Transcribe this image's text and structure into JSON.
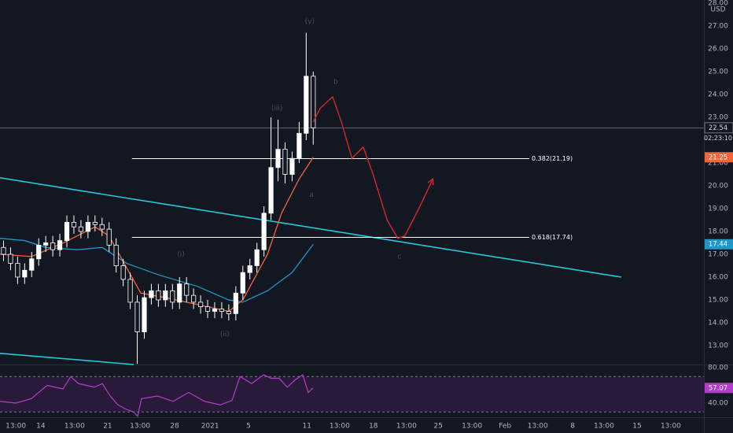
{
  "chart_data": {
    "type": "candlestick",
    "currency": "USD",
    "xlim": [
      0,
      200
    ],
    "ylim": [
      12.17,
      28.14
    ],
    "xticks": [
      {
        "value": 4.5,
        "label": "13:00"
      },
      {
        "value": 11.6,
        "label": "14"
      },
      {
        "value": 21.2,
        "label": "13:00"
      },
      {
        "value": 30.6,
        "label": "21"
      },
      {
        "value": 39.8,
        "label": "13:00"
      },
      {
        "value": 49.6,
        "label": "28"
      },
      {
        "value": 59.7,
        "label": "2021"
      },
      {
        "value": 70.6,
        "label": "5"
      },
      {
        "value": 87.2,
        "label": "11"
      },
      {
        "value": 96.5,
        "label": "13:00"
      },
      {
        "value": 106.1,
        "label": "18"
      },
      {
        "value": 115.5,
        "label": "13:00"
      },
      {
        "value": 124.5,
        "label": "25"
      },
      {
        "value": 134.1,
        "label": "13:00"
      },
      {
        "value": 143.5,
        "label": "Feb"
      },
      {
        "value": 152.8,
        "label": "13:00"
      },
      {
        "value": 162.7,
        "label": "8"
      },
      {
        "value": 171.6,
        "label": "13:00"
      },
      {
        "value": 181,
        "label": "15"
      },
      {
        "value": 190.6,
        "label": "13:00"
      }
    ],
    "yticks": [
      {
        "value": 13,
        "label": "13.00"
      },
      {
        "value": 14,
        "label": "14.00"
      },
      {
        "value": 15,
        "label": "15.00"
      },
      {
        "value": 16,
        "label": "16.00"
      },
      {
        "value": 17,
        "label": "17.00"
      },
      {
        "value": 18,
        "label": "18.00"
      },
      {
        "value": 19,
        "label": "19.00"
      },
      {
        "value": 20,
        "label": "20.00"
      },
      {
        "value": 21,
        "label": "21.00"
      },
      {
        "value": 23,
        "label": "23.00"
      },
      {
        "value": 24,
        "label": "24.00"
      },
      {
        "value": 25,
        "label": "25.00"
      },
      {
        "value": 26,
        "label": "26.00"
      },
      {
        "value": 27,
        "label": "27.00"
      },
      {
        "value": 28,
        "label": "28.00"
      }
    ],
    "candle_color": "#ffffff",
    "x": [
      1,
      3,
      5,
      7,
      9,
      11,
      13,
      15,
      17,
      19,
      21,
      23,
      25,
      27,
      29,
      31,
      33,
      35,
      37,
      39,
      41,
      43,
      45,
      47,
      49,
      51,
      53,
      55,
      57,
      59,
      61,
      63,
      65,
      67,
      69,
      71,
      73,
      75,
      77,
      79,
      81,
      83,
      85,
      87,
      89
    ],
    "open": [
      17.3,
      17.0,
      16.6,
      16.0,
      16.3,
      16.8,
      17.4,
      17.5,
      17.2,
      17.6,
      18.4,
      18.2,
      18.0,
      18.4,
      18.3,
      18.1,
      17.4,
      16.5,
      15.9,
      14.9,
      13.6,
      15.1,
      15.4,
      15.0,
      15.4,
      14.9,
      15.7,
      15.2,
      14.9,
      14.7,
      14.5,
      14.6,
      14.5,
      14.4,
      15.3,
      16.2,
      16.5,
      17.2,
      18.8,
      20.8,
      21.6,
      20.5,
      21.2,
      22.3,
      24.8
    ],
    "high": [
      17.6,
      17.3,
      16.9,
      16.6,
      17.1,
      17.7,
      17.8,
      17.8,
      17.9,
      18.7,
      18.7,
      18.5,
      18.7,
      18.7,
      18.6,
      18.4,
      17.7,
      16.8,
      16.2,
      15.2,
      15.4,
      15.7,
      15.7,
      15.7,
      15.7,
      16.0,
      16.0,
      15.5,
      15.2,
      15.0,
      14.9,
      14.9,
      14.8,
      15.6,
      16.5,
      16.8,
      17.5,
      19.1,
      23.0,
      22.9,
      21.9,
      21.5,
      22.8,
      26.7,
      25.0
    ],
    "low": [
      16.7,
      16.3,
      15.7,
      15.7,
      16.0,
      16.5,
      17.1,
      16.9,
      16.9,
      17.3,
      17.9,
      17.7,
      17.7,
      18.0,
      17.8,
      17.1,
      16.2,
      15.6,
      14.6,
      12.2,
      13.3,
      14.8,
      14.7,
      14.7,
      14.6,
      14.6,
      14.9,
      14.6,
      14.4,
      14.2,
      14.2,
      14.2,
      14.1,
      14.1,
      15.0,
      15.9,
      16.2,
      16.9,
      18.5,
      20.2,
      20.1,
      20.2,
      21.0,
      22.0,
      21.8
    ],
    "close": [
      17.0,
      16.6,
      16.0,
      16.3,
      16.8,
      17.4,
      17.5,
      17.2,
      17.6,
      18.4,
      18.2,
      18.0,
      18.4,
      18.3,
      18.1,
      17.4,
      16.5,
      15.9,
      14.9,
      13.6,
      15.1,
      15.4,
      15.0,
      15.4,
      14.9,
      15.7,
      15.2,
      14.9,
      14.7,
      14.5,
      14.6,
      14.5,
      14.4,
      15.3,
      16.2,
      16.5,
      17.2,
      18.8,
      20.8,
      21.6,
      20.5,
      21.2,
      22.3,
      24.8,
      22.54
    ],
    "last_price": 22.54,
    "countdown": "02:23:10",
    "series": [
      {
        "color": "#2196c8",
        "x": [
          0,
          7,
          13,
          22,
          29,
          36,
          45,
          56,
          65,
          69,
          76,
          83,
          89
        ],
        "values": [
          17.7,
          17.6,
          17.3,
          17.2,
          17.3,
          16.6,
          16.1,
          15.6,
          15.0,
          14.9,
          15.4,
          16.2,
          17.44
        ],
        "last": 17.44
      },
      {
        "color": "#f0653a",
        "x": [
          0,
          9,
          18,
          27,
          31,
          36,
          40,
          47,
          56,
          65,
          69,
          76,
          80,
          85,
          89
        ],
        "values": [
          17.0,
          16.9,
          17.5,
          18.2,
          17.8,
          16.4,
          15.3,
          15.1,
          14.8,
          14.5,
          15.0,
          17.0,
          18.8,
          20.3,
          21.25
        ],
        "last": 21.25
      }
    ],
    "trendlines": [
      {
        "color": "#26c6da",
        "x": [
          0,
          176.5
        ],
        "values": [
          20.35,
          16.0
        ]
      },
      {
        "color": "#26c6da",
        "x": [
          0,
          38
        ],
        "values": [
          12.66,
          12.17
        ]
      }
    ],
    "fib": [
      {
        "label": "0.382(21.19)",
        "value": 21.19,
        "x": [
          37.5,
          150.4
        ]
      },
      {
        "label": "0.618(17.74)",
        "value": 17.74,
        "x": [
          37.5,
          150.4
        ]
      }
    ],
    "projection": {
      "color": "#c62828",
      "x": [
        89,
        91,
        94.5,
        97,
        100,
        103.2,
        106,
        110,
        113,
        115,
        119,
        123
      ],
      "values": [
        22.8,
        23.4,
        23.9,
        22.8,
        21.2,
        21.7,
        20.5,
        18.5,
        17.7,
        17.8,
        19.0,
        20.3
      ]
    },
    "annotations": [
      {
        "text": "(v)",
        "x": 88,
        "y": 27.2
      },
      {
        "text": "b",
        "x": 95.4,
        "y": 24.55
      },
      {
        "text": "(iii)",
        "x": 78.7,
        "y": 23.4
      },
      {
        "text": "a",
        "x": 88.5,
        "y": 19.6
      },
      {
        "text": "c",
        "x": 113.5,
        "y": 16.9
      },
      {
        "text": "(i)",
        "x": 51.4,
        "y": 17.0
      },
      {
        "text": "(ii)",
        "x": 63.9,
        "y": 13.5
      }
    ],
    "rsi": {
      "ylim": [
        24,
        81.8
      ],
      "yticks": [
        {
          "value": 80,
          "label": "80.00"
        },
        {
          "value": 40,
          "label": "40.00"
        }
      ],
      "bands": [
        70,
        30
      ],
      "color": "#b03fc8",
      "x": [
        0,
        4.5,
        8.9,
        13.4,
        17.9,
        20.1,
        22.3,
        26.8,
        29.1,
        31.3,
        33.5,
        35.8,
        38,
        39.1,
        40.2,
        44.7,
        49.2,
        53.6,
        58.1,
        62.6,
        65.9,
        68.2,
        71.5,
        74.9,
        77.1,
        79.3,
        81.6,
        83.8,
        86,
        87.6,
        88.9
      ],
      "values": [
        42,
        40,
        45,
        60,
        56,
        70,
        62,
        58,
        62,
        48,
        38,
        33,
        30,
        25,
        45,
        48,
        42,
        52,
        42,
        38,
        43,
        70,
        62,
        72,
        68,
        68,
        58,
        66,
        72,
        52,
        57.07
      ],
      "last": 57.07
    }
  }
}
